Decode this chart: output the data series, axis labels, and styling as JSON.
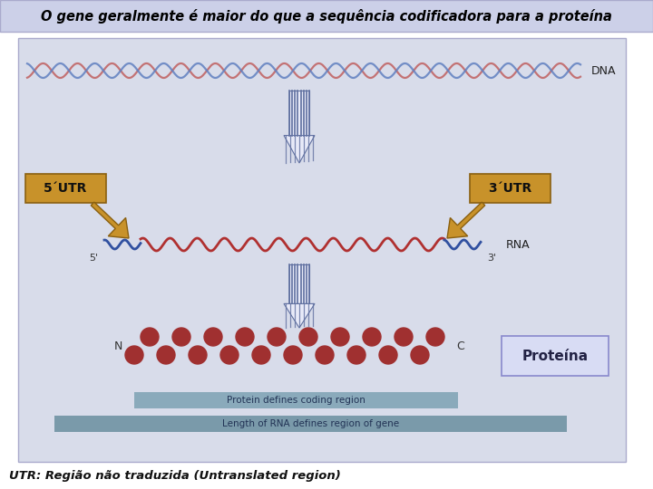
{
  "title": "O gene geralmente é maior do que a sequência codificadora para a proteína",
  "title_fontsize": 10.5,
  "title_bg": "#ccd0e8",
  "title_fg": "#000000",
  "panel_bg": "#d8dcea",
  "fig_bg": "#ffffff",
  "dna_label": "DNA",
  "rna_label": "RNA",
  "utr5_label": "5´UTR",
  "utr3_label": "3´UTR",
  "five_prime": "5'",
  "three_prime": "3'",
  "n_label": "N",
  "c_label": "C",
  "protein_box_text": "Proteína",
  "protein_box_bg": "#d8dcf4",
  "coding_bar_text": "Protein defines coding region",
  "gene_bar_text": "Length of RNA defines region of gene",
  "bottom_note": "UTR: Região não traduzida (Untranslated region)",
  "utr_arrow_color": "#c8922a",
  "utr_arrow_edge": "#8a6010",
  "protein_dot_color": "#a03030",
  "rna_red_color": "#b03030",
  "rna_blue_color": "#3050a0",
  "bar1_color": "#8aaabb",
  "bar2_color": "#7a9aaa",
  "dna_red": "#c06060",
  "dna_blue": "#6080c0",
  "arrow_stripe_color": "#6070a0",
  "arrow_stripe_bg": "#e8eaf8"
}
